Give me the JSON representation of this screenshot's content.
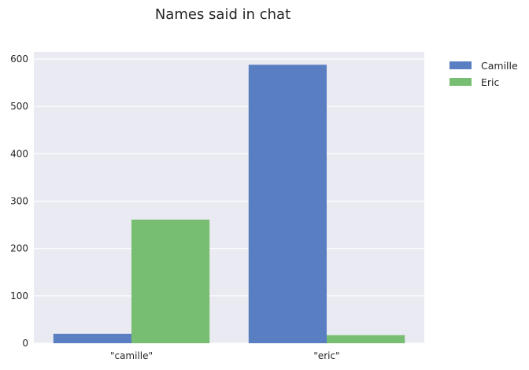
{
  "chart_data": {
    "type": "bar",
    "title": "Names said in chat",
    "xlabel": "",
    "ylabel": "",
    "categories": [
      "\"camille\"",
      "\"eric\""
    ],
    "series": [
      {
        "name": "Camille",
        "values": [
          20,
          588
        ],
        "color": "#5a7ec2"
      },
      {
        "name": "Eric",
        "values": [
          261,
          17
        ],
        "color": "#77be72"
      }
    ],
    "ylim": [
      0,
      615
    ],
    "yticks": [
      0,
      100,
      200,
      300,
      400,
      500,
      600
    ],
    "grid": true,
    "legend_position": "outside-top-right",
    "background_color": "#eaeaf2"
  }
}
